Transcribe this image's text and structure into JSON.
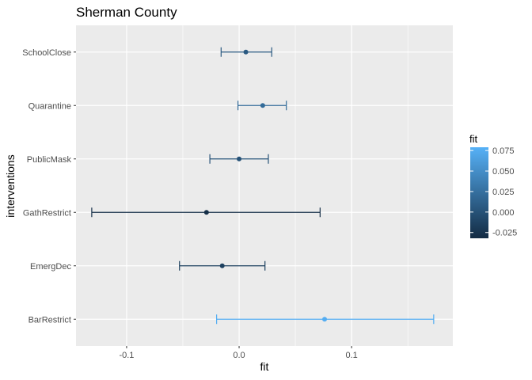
{
  "chart_data": {
    "type": "errorbar",
    "title": "Sherman County",
    "xlabel": "fit",
    "ylabel": "interventions",
    "xlim": [
      -0.145,
      0.19
    ],
    "x_ticks": [
      -0.1,
      0.0,
      0.1
    ],
    "x_tick_labels": [
      "-0.1",
      "0.0",
      "0.1"
    ],
    "grid": true,
    "categories": [
      "SchoolClose",
      "Quarantine",
      "PublicMask",
      "GathRestrict",
      "EmergDec",
      "BarRestrict"
    ],
    "points": [
      {
        "intervention": "SchoolClose",
        "fit": 0.006,
        "lower": -0.016,
        "upper": 0.029
      },
      {
        "intervention": "Quarantine",
        "fit": 0.021,
        "lower": -0.001,
        "upper": 0.042
      },
      {
        "intervention": "PublicMask",
        "fit": 0.0,
        "lower": -0.026,
        "upper": 0.026
      },
      {
        "intervention": "GathRestrict",
        "fit": -0.029,
        "lower": -0.131,
        "upper": 0.072
      },
      {
        "intervention": "EmergDec",
        "fit": -0.015,
        "lower": -0.053,
        "upper": 0.023
      },
      {
        "intervention": "BarRestrict",
        "fit": 0.076,
        "lower": -0.02,
        "upper": 0.173
      }
    ],
    "legend": {
      "title": "fit",
      "placement": "right",
      "type": "colorbar",
      "range": [
        -0.032,
        0.079
      ],
      "ticks": [
        -0.025,
        0.0,
        0.025,
        0.05,
        0.075
      ],
      "tick_labels": [
        "-0.025",
        "0.000",
        "0.025",
        "0.050",
        "0.075"
      ],
      "low_color": "#132b43",
      "high_color": "#56b1f7"
    },
    "panel_color": "#ebebeb",
    "grid_color": "#ffffff"
  }
}
